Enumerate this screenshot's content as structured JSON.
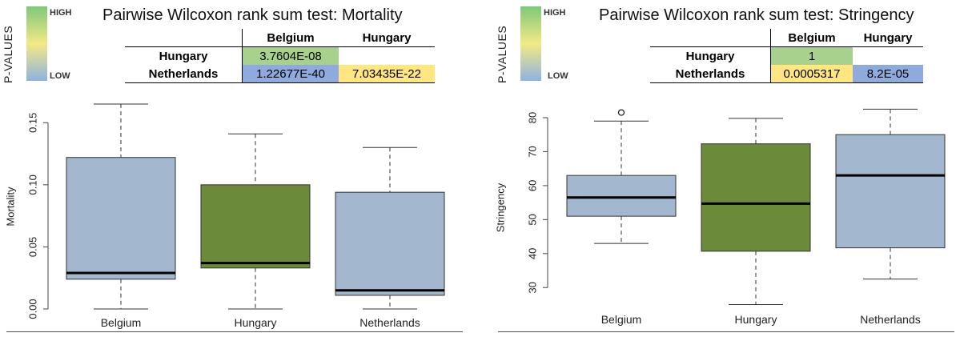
{
  "legend": {
    "title": "P-VALUES",
    "high": "HIGH",
    "low": "LOW"
  },
  "colors": {
    "box_blue": "#a3b8cf",
    "box_green": "#6b8a3a",
    "cell_green": "#a9d18e",
    "cell_yellow": "#ffe680",
    "cell_blue": "#8faadc"
  },
  "panels": [
    {
      "title": "Pairwise Wilcoxon rank sum test: Mortality",
      "table": {
        "col_headers": [
          "Belgium",
          "Hungary"
        ],
        "rows": [
          {
            "label": "Hungary",
            "cells": [
              {
                "text": "3.7604E-08",
                "color": "#a9d18e"
              },
              {
                "text": "",
                "color": ""
              }
            ]
          },
          {
            "label": "Netherlands",
            "cells": [
              {
                "text": "1.22677E-40",
                "color": "#8faadc"
              },
              {
                "text": "7.03435E-22",
                "color": "#ffe680"
              }
            ]
          }
        ]
      }
    },
    {
      "title": "Pairwise Wilcoxon rank sum test: Stringency",
      "table": {
        "col_headers": [
          "Belgium",
          "Hungary"
        ],
        "rows": [
          {
            "label": "Hungary",
            "cells": [
              {
                "text": "1",
                "color": "#a9d18e"
              },
              {
                "text": "",
                "color": ""
              }
            ]
          },
          {
            "label": "Netherlands",
            "cells": [
              {
                "text": "0.0005317",
                "color": "#ffe680"
              },
              {
                "text": "8.2E-05",
                "color": "#8faadc"
              }
            ]
          }
        ]
      }
    }
  ],
  "chart_data": [
    {
      "type": "boxplot",
      "ylabel": "Mortality",
      "ylim": [
        0,
        0.165
      ],
      "yticks": [
        0.0,
        0.05,
        0.1,
        0.15
      ],
      "ytick_labels": [
        "0.00",
        "0.05",
        "0.10",
        "0.15"
      ],
      "categories": [
        "Belgium",
        "Hungary",
        "Netherlands"
      ],
      "boxes": [
        {
          "name": "Belgium",
          "min": 0.0,
          "q1": 0.024,
          "median": 0.029,
          "q3": 0.122,
          "max": 0.165,
          "outliers": [],
          "color": "#a3b8cf"
        },
        {
          "name": "Hungary",
          "min": 0.0,
          "q1": 0.033,
          "median": 0.037,
          "q3": 0.1,
          "max": 0.141,
          "outliers": [],
          "color": "#6b8a3a"
        },
        {
          "name": "Netherlands",
          "min": 0.0,
          "q1": 0.011,
          "median": 0.015,
          "q3": 0.094,
          "max": 0.13,
          "outliers": [],
          "color": "#a3b8cf"
        }
      ]
    },
    {
      "type": "boxplot",
      "ylabel": "Stringency",
      "ylim": [
        23,
        84
      ],
      "yticks": [
        30,
        40,
        50,
        60,
        70,
        80
      ],
      "ytick_labels": [
        "30",
        "40",
        "50",
        "60",
        "70",
        "80"
      ],
      "categories": [
        "Belgium",
        "Hungary",
        "Netherlands"
      ],
      "boxes": [
        {
          "name": "Belgium",
          "min": 43,
          "q1": 51,
          "median": 56.5,
          "q3": 63,
          "max": 79,
          "outliers": [
            81.5
          ],
          "color": "#a3b8cf"
        },
        {
          "name": "Hungary",
          "min": 25,
          "q1": 40.7,
          "median": 54.7,
          "q3": 72.3,
          "max": 79.8,
          "outliers": [],
          "color": "#6b8a3a"
        },
        {
          "name": "Netherlands",
          "min": 32.5,
          "q1": 41.7,
          "median": 63,
          "q3": 75,
          "max": 82.5,
          "outliers": [],
          "color": "#a3b8cf"
        }
      ]
    }
  ]
}
